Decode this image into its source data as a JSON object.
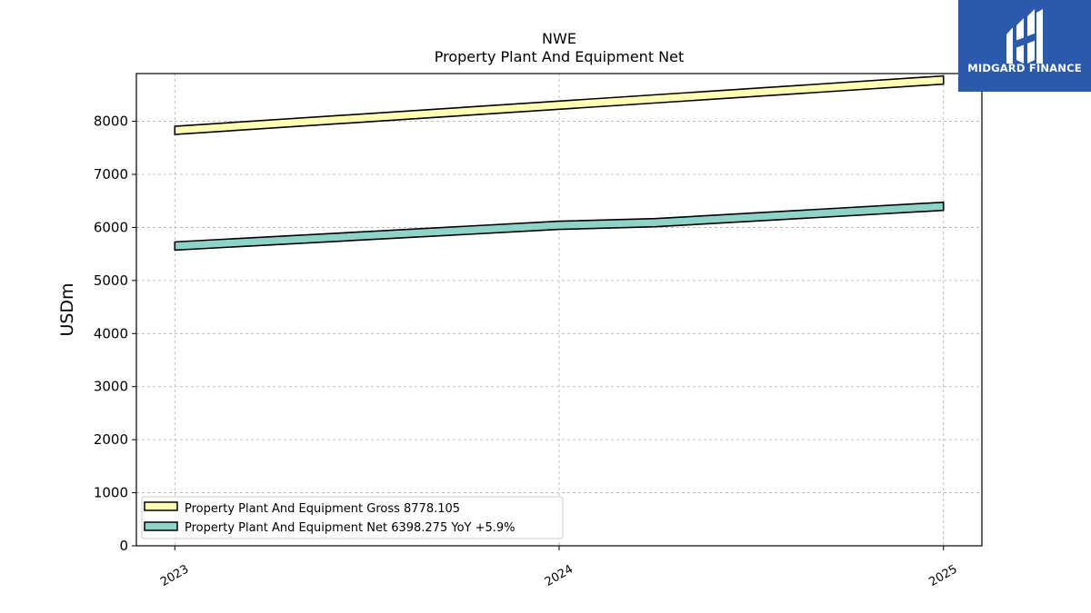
{
  "chart_data": {
    "type": "line",
    "title": "NWE",
    "subtitle": "Property Plant And Equipment Net",
    "ylabel": "USDm",
    "xlabel": "",
    "ylim": [
      0,
      8900
    ],
    "yticks": [
      0,
      1000,
      2000,
      3000,
      4000,
      5000,
      6000,
      7000,
      8000
    ],
    "xticks": [
      "2023",
      "2024",
      "2025"
    ],
    "x": [
      2023.0,
      2024.0,
      2024.25,
      2025.0
    ],
    "series": [
      {
        "name": "Property Plant And Equipment Gross",
        "legend_label": "Property Plant And Equipment Gross  8778.105",
        "color": "#ffffb3",
        "x": [
          2023.0,
          2025.0
        ],
        "values": [
          7830,
          8778.105
        ]
      },
      {
        "name": "Property Plant And Equipment Net",
        "legend_label": "Property Plant And Equipment Net  6398.275 YoY +5.9%",
        "color": "#8dd3c7",
        "x": [
          2023.0,
          2024.0,
          2024.25,
          2025.0
        ],
        "values": [
          5650,
          6040,
          6090,
          6398.275
        ]
      }
    ],
    "grid": true,
    "legend_position": "lower-left"
  },
  "logo": {
    "text": "MIDGARD FINANCE"
  }
}
